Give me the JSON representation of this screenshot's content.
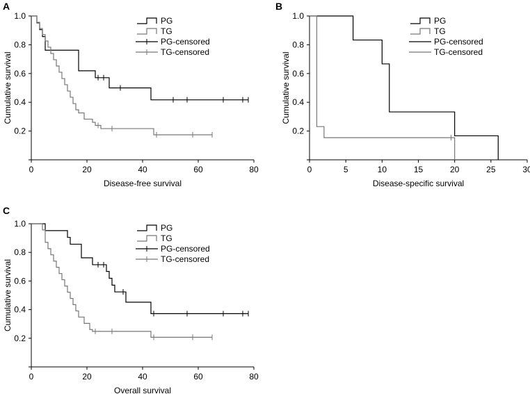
{
  "chart_data": [
    {
      "type": "line",
      "step": true,
      "panel_label": "A",
      "title": "",
      "xlabel": "Disease-free survival",
      "ylabel": "Cumulative survival",
      "xlim": [
        0,
        80
      ],
      "ylim": [
        0,
        1.0
      ],
      "xticks": [
        0,
        20,
        40,
        60,
        80
      ],
      "yticks": [
        0.2,
        0.4,
        0.6,
        0.8,
        1.0
      ],
      "legend": [
        "PG",
        "TG",
        "PG-censored",
        "TG-censored"
      ],
      "series": [
        {
          "name": "PG",
          "color": "#000000",
          "steps": [
            [
              0,
              1.0
            ],
            [
              2,
              0.952
            ],
            [
              3,
              0.905
            ],
            [
              4,
              0.857
            ],
            [
              5,
              0.762
            ],
            [
              17,
              0.619
            ],
            [
              23,
              0.571
            ],
            [
              28,
              0.5
            ],
            [
              43,
              0.417
            ],
            [
              78,
              0.417
            ]
          ],
          "censored": [
            [
              24,
              0.571
            ],
            [
              26,
              0.571
            ],
            [
              32,
              0.5
            ],
            [
              51,
              0.417
            ],
            [
              56,
              0.417
            ],
            [
              69,
              0.417
            ],
            [
              76,
              0.417
            ],
            [
              78,
              0.417
            ]
          ]
        },
        {
          "name": "TG",
          "color": "#777777",
          "steps": [
            [
              0,
              1.0
            ],
            [
              2,
              0.956
            ],
            [
              3,
              0.913
            ],
            [
              4,
              0.87
            ],
            [
              5,
              0.826
            ],
            [
              6,
              0.783
            ],
            [
              7,
              0.739
            ],
            [
              8,
              0.696
            ],
            [
              9,
              0.652
            ],
            [
              10,
              0.609
            ],
            [
              11,
              0.565
            ],
            [
              12,
              0.522
            ],
            [
              13,
              0.478
            ],
            [
              14,
              0.435
            ],
            [
              15,
              0.391
            ],
            [
              16,
              0.348
            ],
            [
              17,
              0.326
            ],
            [
              19,
              0.283
            ],
            [
              22,
              0.261
            ],
            [
              23,
              0.239
            ],
            [
              25,
              0.217
            ],
            [
              44,
              0.174
            ],
            [
              65,
              0.174
            ]
          ],
          "censored": [
            [
              24,
              0.239
            ],
            [
              29,
              0.217
            ],
            [
              45,
              0.174
            ],
            [
              58,
              0.174
            ],
            [
              65,
              0.174
            ]
          ]
        }
      ]
    },
    {
      "type": "line",
      "step": true,
      "panel_label": "B",
      "title": "",
      "xlabel": "Disease-specific survival",
      "ylabel": "Cumulative survival",
      "xlim": [
        0,
        30
      ],
      "ylim": [
        0,
        1.0
      ],
      "xticks": [
        0,
        5,
        10,
        15,
        20,
        25,
        30
      ],
      "yticks": [
        0.2,
        0.4,
        0.6,
        0.8,
        1.0
      ],
      "legend": [
        "PG",
        "TG",
        "PG-censored",
        "TG-censored"
      ],
      "series": [
        {
          "name": "PG",
          "color": "#000000",
          "steps": [
            [
              0,
              1.0
            ],
            [
              6,
              0.833
            ],
            [
              10,
              0.667
            ],
            [
              11,
              0.333
            ],
            [
              20,
              0.167
            ],
            [
              26,
              0.167
            ],
            [
              26,
              0
            ]
          ],
          "censored": []
        },
        {
          "name": "TG",
          "color": "#777777",
          "steps": [
            [
              0,
              1.0
            ],
            [
              1,
              0.231
            ],
            [
              2,
              0.154
            ],
            [
              20,
              0.154
            ],
            [
              20,
              0
            ]
          ],
          "censored": [
            [
              19.5,
              0.154
            ]
          ]
        }
      ]
    },
    {
      "type": "line",
      "step": true,
      "panel_label": "C",
      "title": "",
      "xlabel": "Overall survival",
      "ylabel": "Cumulative survival",
      "xlim": [
        0,
        80
      ],
      "ylim": [
        0,
        1.0
      ],
      "xticks": [
        0,
        20,
        40,
        60,
        80
      ],
      "yticks": [
        0.2,
        0.4,
        0.6,
        0.8,
        1.0
      ],
      "legend": [
        "PG",
        "TG",
        "PG-censored",
        "TG-censored"
      ],
      "series": [
        {
          "name": "PG",
          "color": "#000000",
          "steps": [
            [
              0,
              1.0
            ],
            [
              5,
              0.952
            ],
            [
              13,
              0.905
            ],
            [
              14,
              0.857
            ],
            [
              18,
              0.762
            ],
            [
              22,
              0.714
            ],
            [
              27,
              0.667
            ],
            [
              28,
              0.619
            ],
            [
              29,
              0.571
            ],
            [
              30,
              0.524
            ],
            [
              34,
              0.452
            ],
            [
              43,
              0.372
            ],
            [
              78,
              0.372
            ]
          ],
          "censored": [
            [
              24,
              0.714
            ],
            [
              26,
              0.714
            ],
            [
              33,
              0.524
            ],
            [
              44,
              0.372
            ],
            [
              56,
              0.372
            ],
            [
              69,
              0.372
            ],
            [
              76,
              0.372
            ],
            [
              78,
              0.372
            ]
          ]
        },
        {
          "name": "TG",
          "color": "#777777",
          "steps": [
            [
              0,
              1.0
            ],
            [
              4,
              0.957
            ],
            [
              5,
              0.87
            ],
            [
              6,
              0.826
            ],
            [
              7,
              0.783
            ],
            [
              8,
              0.739
            ],
            [
              9,
              0.696
            ],
            [
              10,
              0.652
            ],
            [
              11,
              0.609
            ],
            [
              12,
              0.565
            ],
            [
              13,
              0.522
            ],
            [
              14,
              0.478
            ],
            [
              15,
              0.435
            ],
            [
              16,
              0.391
            ],
            [
              17,
              0.348
            ],
            [
              19,
              0.304
            ],
            [
              21,
              0.261
            ],
            [
              22,
              0.248
            ],
            [
              43,
              0.207
            ],
            [
              65,
              0.207
            ]
          ],
          "censored": [
            [
              23,
              0.248
            ],
            [
              29,
              0.248
            ],
            [
              44,
              0.207
            ],
            [
              58,
              0.207
            ],
            [
              65,
              0.207
            ]
          ]
        }
      ]
    }
  ]
}
